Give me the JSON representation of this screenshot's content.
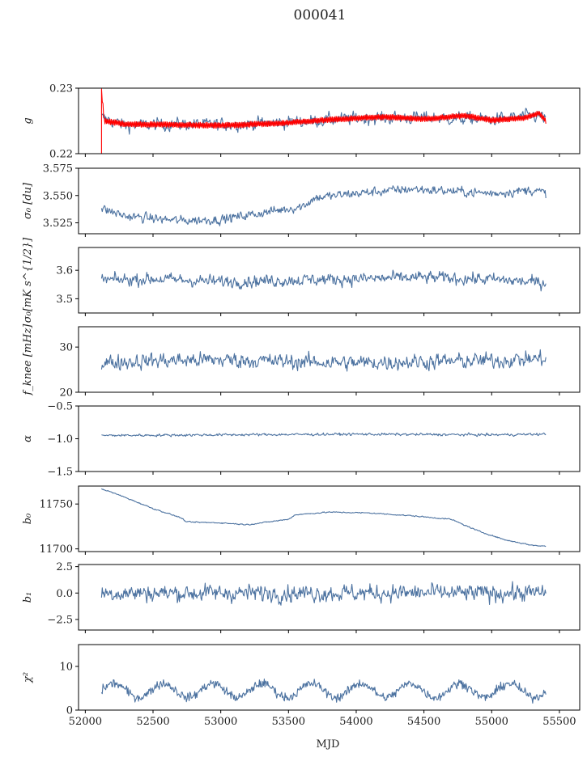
{
  "figure": {
    "title": "000041",
    "xlabel": "MJD"
  },
  "chart_data": {
    "type": "line",
    "shared_x": {
      "label": "MJD",
      "xlim": [
        51950,
        55650
      ],
      "ticks": [
        52000,
        52500,
        53000,
        53500,
        54000,
        54500,
        55000,
        55500
      ],
      "tick_labels": [
        "52000",
        "52500",
        "53000",
        "53500",
        "54000",
        "54500",
        "55000",
        "55500"
      ],
      "data_range": [
        52120,
        55400
      ]
    },
    "panels": [
      {
        "ylabel": "g",
        "ylim": [
          0.22,
          0.23
        ],
        "ticks": [
          0.22,
          0.23
        ],
        "tick_labels": [
          "0.22",
          "0.23"
        ],
        "series": [
          {
            "color": "#4c72a0",
            "kind": "noisy",
            "knots": [
              [
                52120,
                0.2255
              ],
              [
                52300,
                0.2243
              ],
              [
                52700,
                0.2245
              ],
              [
                53000,
                0.2244
              ],
              [
                53500,
                0.2248
              ],
              [
                54000,
                0.2254
              ],
              [
                54500,
                0.2255
              ],
              [
                55000,
                0.2252
              ],
              [
                55300,
                0.2258
              ],
              [
                55400,
                0.2255
              ]
            ],
            "noise": 0.0009
          },
          {
            "color": "#ff0000",
            "kind": "band",
            "knots": [
              [
                52120,
                0.2295
              ],
              [
                52140,
                0.225
              ],
              [
                52300,
                0.2245
              ],
              [
                52700,
                0.2244
              ],
              [
                53000,
                0.2243
              ],
              [
                53500,
                0.2247
              ],
              [
                53800,
                0.2252
              ],
              [
                54200,
                0.2256
              ],
              [
                54500,
                0.2253
              ],
              [
                54800,
                0.2258
              ],
              [
                55000,
                0.2251
              ],
              [
                55250,
                0.2255
              ],
              [
                55350,
                0.2262
              ],
              [
                55400,
                0.225
              ]
            ],
            "width": 0.00045
          }
        ]
      },
      {
        "ylabel": "σ₀ [du]",
        "ylim": [
          3.515,
          3.575
        ],
        "ticks": [
          3.525,
          3.55,
          3.575
        ],
        "tick_labels": [
          "3.525",
          "3.550",
          "3.575"
        ],
        "series": [
          {
            "color": "#4c72a0",
            "kind": "noisy",
            "knots": [
              [
                52120,
                3.538
              ],
              [
                52300,
                3.531
              ],
              [
                52700,
                3.527
              ],
              [
                53000,
                3.528
              ],
              [
                53300,
                3.534
              ],
              [
                53600,
                3.54
              ],
              [
                53700,
                3.548
              ],
              [
                54000,
                3.552
              ],
              [
                54400,
                3.556
              ],
              [
                54700,
                3.554
              ],
              [
                55000,
                3.552
              ],
              [
                55300,
                3.555
              ],
              [
                55400,
                3.552
              ]
            ],
            "noise": 0.004
          }
        ]
      },
      {
        "ylabel": "σ₀[mK s^{1/2}]",
        "ylim": [
          3.45,
          3.68
        ],
        "ticks": [
          3.5,
          3.6
        ],
        "tick_labels": [
          "3.5",
          "3.6"
        ],
        "series": [
          {
            "color": "#4c72a0",
            "kind": "noisy",
            "knots": [
              [
                52120,
                3.565
              ],
              [
                52500,
                3.57
              ],
              [
                53000,
                3.56
              ],
              [
                53500,
                3.565
              ],
              [
                54000,
                3.57
              ],
              [
                54500,
                3.575
              ],
              [
                55000,
                3.568
              ],
              [
                55400,
                3.555
              ]
            ],
            "noise": 0.02
          }
        ]
      },
      {
        "ylabel": "f_knee [mHz]",
        "ylim": [
          20,
          34.5
        ],
        "ticks": [
          20,
          30
        ],
        "tick_labels": [
          "20",
          "30"
        ],
        "series": [
          {
            "color": "#4c72a0",
            "kind": "noisy",
            "knots": [
              [
                52120,
                26.5
              ],
              [
                52500,
                27.0
              ],
              [
                53000,
                27.2
              ],
              [
                53500,
                26.8
              ],
              [
                54000,
                26.5
              ],
              [
                54500,
                26.8
              ],
              [
                55000,
                27.0
              ],
              [
                55400,
                27.5
              ]
            ],
            "noise": 1.6
          }
        ]
      },
      {
        "ylabel": "α",
        "ylim": [
          -1.5,
          -0.5
        ],
        "ticks": [
          -1.5,
          -1.0,
          -0.5
        ],
        "tick_labels": [
          "−1.5",
          "−1.0",
          "−0.5"
        ],
        "series": [
          {
            "color": "#4c72a0",
            "kind": "noisy",
            "knots": [
              [
                52120,
                -0.95
              ],
              [
                53000,
                -0.94
              ],
              [
                54000,
                -0.93
              ],
              [
                55000,
                -0.94
              ],
              [
                55400,
                -0.93
              ]
            ],
            "noise": 0.018
          }
        ]
      },
      {
        "ylabel": "b₀",
        "ylim": [
          11697,
          11770
        ],
        "ticks": [
          11700,
          11750
        ],
        "tick_labels": [
          "11700",
          "11750"
        ],
        "series": [
          {
            "color": "#4c72a0",
            "kind": "noisy",
            "knots": [
              [
                52120,
                11767
              ],
              [
                52250,
                11760
              ],
              [
                52500,
                11745
              ],
              [
                52700,
                11735
              ],
              [
                52750,
                11730
              ],
              [
                53000,
                11729
              ],
              [
                53200,
                11727
              ],
              [
                53400,
                11731
              ],
              [
                53500,
                11733
              ],
              [
                53550,
                11738
              ],
              [
                53800,
                11741
              ],
              [
                54100,
                11740
              ],
              [
                54400,
                11737
              ],
              [
                54700,
                11733
              ],
              [
                54900,
                11720
              ],
              [
                55100,
                11710
              ],
              [
                55300,
                11704
              ],
              [
                55400,
                11703
              ]
            ],
            "noise": 0.6
          }
        ]
      },
      {
        "ylabel": "b₁",
        "ylim": [
          -3.5,
          2.7
        ],
        "ticks": [
          -2.5,
          0.0,
          2.5
        ],
        "tick_labels": [
          "−2.5",
          "0.0",
          "2.5"
        ],
        "series": [
          {
            "color": "#4c72a0",
            "kind": "noisy",
            "knots": [
              [
                52120,
                0.0
              ],
              [
                55400,
                0.0
              ]
            ],
            "noise": 0.75
          }
        ]
      },
      {
        "ylabel": "χ²",
        "ylim": [
          0,
          15
        ],
        "ticks": [
          0,
          10
        ],
        "tick_labels": [
          "0",
          "10"
        ],
        "series": [
          {
            "color": "#4c72a0",
            "kind": "periodic",
            "knots": [
              [
                52120,
                4.5
              ],
              [
                55400,
                4.5
              ]
            ],
            "period": 365,
            "amplitude": 1.6,
            "noise": 1.0
          }
        ]
      }
    ]
  }
}
